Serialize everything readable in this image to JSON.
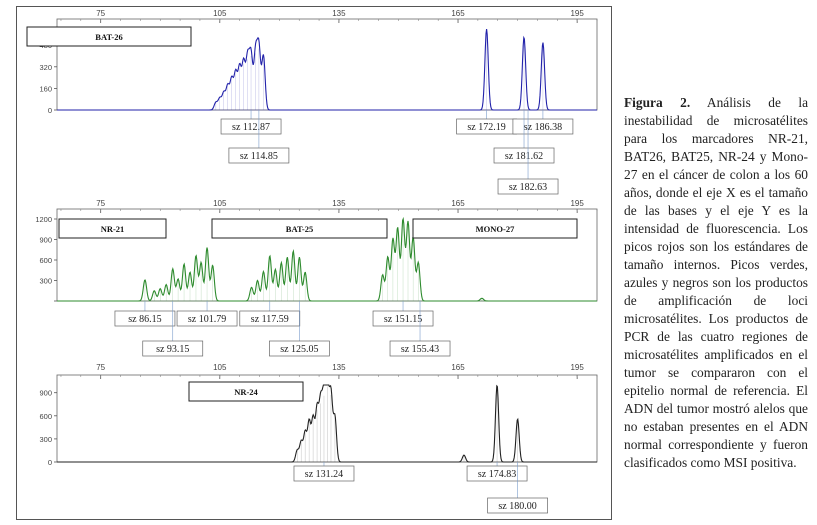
{
  "caption": {
    "label": "Figura 2.",
    "text": "Análisis de la inestabilidad de microsatélites para los marcadores NR-21, BAT26, BAT25, NR-24 y Mono-27 en el cáncer de colon a los 60 años, donde el eje X es el tamaño de las bases y el eje Y es la intensidad de fluorescencia. Los picos rojos son los estándares de tamaño internos. Picos verdes, azules y negros son los productos de amplificación de loci microsatélites. Los productos de PCR de las cuatro regiones de microsatélites amplificados en el tumor se compararon con el epitelio normal de referencia. El ADN del tumor mostró alelos que no estaban presentes en el ADN normal correspondiente y fueron clasificados como MSI positiva."
  },
  "chart_data": [
    {
      "type": "line",
      "xlim": [
        64,
        200
      ],
      "x_ticks": [
        75,
        105,
        135,
        165,
        195
      ],
      "ylim": [
        0,
        600
      ],
      "y_ticks": [
        0,
        160,
        320,
        480
      ],
      "color": "#2222aa",
      "markers": [
        "BAT-26"
      ],
      "peaks": [
        {
          "x": 104.0,
          "h": 55
        },
        {
          "x": 105.0,
          "h": 85
        },
        {
          "x": 106.0,
          "h": 125
        },
        {
          "x": 107.0,
          "h": 175
        },
        {
          "x": 108.0,
          "h": 225
        },
        {
          "x": 109.0,
          "h": 270
        },
        {
          "x": 110.0,
          "h": 310
        },
        {
          "x": 111.0,
          "h": 345
        },
        {
          "x": 112.0,
          "h": 375
        },
        {
          "x": 112.87,
          "h": 400
        },
        {
          "x": 114.0,
          "h": 420
        },
        {
          "x": 114.85,
          "h": 455
        },
        {
          "x": 116.0,
          "h": 400
        },
        {
          "x": 172.19,
          "h": 600
        },
        {
          "x": 181.62,
          "h": 540
        },
        {
          "x": 186.38,
          "h": 500
        }
      ],
      "size_labels": [
        "sz 112.87",
        "sz 114.85",
        "sz 172.19",
        "sz 186.38",
        "sz 181.62",
        "sz 182.63"
      ],
      "label_x": [
        112.87,
        114.85,
        172.19,
        186.38,
        181.62,
        182.63
      ]
    },
    {
      "type": "line",
      "xlim": [
        64,
        200
      ],
      "x_ticks": [
        75,
        105,
        135,
        165,
        195
      ],
      "ylim": [
        0,
        1200
      ],
      "y_ticks": [
        0,
        300,
        600,
        900,
        1200
      ],
      "y_tick_labels": [
        "300",
        "600",
        "900",
        "1200"
      ],
      "color": "#2e8b2e",
      "markers": [
        "NR-21",
        "BAT-25",
        "MONO-27"
      ],
      "peaks": [
        {
          "x": 86.15,
          "h": 310
        },
        {
          "x": 88.5,
          "h": 150
        },
        {
          "x": 90.0,
          "h": 180
        },
        {
          "x": 91.5,
          "h": 240
        },
        {
          "x": 93.15,
          "h": 470
        },
        {
          "x": 94.5,
          "h": 320
        },
        {
          "x": 96.0,
          "h": 540
        },
        {
          "x": 97.5,
          "h": 420
        },
        {
          "x": 99.0,
          "h": 660
        },
        {
          "x": 100.3,
          "h": 560
        },
        {
          "x": 101.79,
          "h": 780
        },
        {
          "x": 103.2,
          "h": 520
        },
        {
          "x": 113.0,
          "h": 200
        },
        {
          "x": 114.5,
          "h": 300
        },
        {
          "x": 116.0,
          "h": 430
        },
        {
          "x": 117.59,
          "h": 660
        },
        {
          "x": 119.0,
          "h": 460
        },
        {
          "x": 120.5,
          "h": 560
        },
        {
          "x": 122.0,
          "h": 640
        },
        {
          "x": 123.5,
          "h": 730
        },
        {
          "x": 125.05,
          "h": 640
        },
        {
          "x": 126.5,
          "h": 420
        },
        {
          "x": 146.0,
          "h": 380
        },
        {
          "x": 147.3,
          "h": 640
        },
        {
          "x": 148.6,
          "h": 900
        },
        {
          "x": 149.8,
          "h": 1060
        },
        {
          "x": 151.15,
          "h": 1200
        },
        {
          "x": 152.4,
          "h": 1150
        },
        {
          "x": 153.7,
          "h": 930
        },
        {
          "x": 155.0,
          "h": 560
        },
        {
          "x": 171.0,
          "h": 40
        }
      ],
      "size_labels": [
        "sz 86.15",
        "sz 101.79",
        "sz 117.59",
        "sz 151.15",
        "sz 93.15",
        "sz 125.05",
        "sz 155.43"
      ],
      "label_x": [
        86.15,
        101.79,
        117.59,
        151.15,
        93.15,
        125.05,
        155.43
      ]
    },
    {
      "type": "line",
      "xlim": [
        64,
        200
      ],
      "x_ticks": [
        75,
        105,
        135,
        165,
        195
      ],
      "ylim": [
        0,
        1000
      ],
      "y_ticks": [
        0,
        300,
        600,
        900
      ],
      "color": "#222222",
      "markers": [
        "NR-24"
      ],
      "peaks": [
        {
          "x": 124.5,
          "h": 150
        },
        {
          "x": 125.5,
          "h": 260
        },
        {
          "x": 126.5,
          "h": 380
        },
        {
          "x": 127.5,
          "h": 520
        },
        {
          "x": 128.5,
          "h": 560
        },
        {
          "x": 129.5,
          "h": 680
        },
        {
          "x": 130.4,
          "h": 760
        },
        {
          "x": 131.24,
          "h": 860
        },
        {
          "x": 132.1,
          "h": 980
        },
        {
          "x": 133.0,
          "h": 870
        },
        {
          "x": 134.0,
          "h": 580
        },
        {
          "x": 166.5,
          "h": 90
        },
        {
          "x": 174.83,
          "h": 1000
        },
        {
          "x": 180.0,
          "h": 560
        }
      ],
      "size_labels": [
        "sz 131.24",
        "sz 174.83",
        "sz 180.00"
      ],
      "label_x": [
        131.24,
        174.83,
        180.0
      ]
    }
  ]
}
